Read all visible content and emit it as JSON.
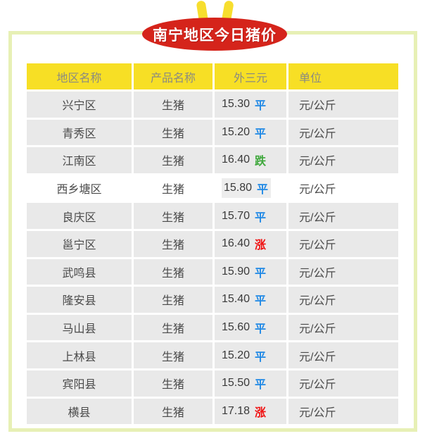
{
  "title": "南宁地区今日猪价",
  "colors": {
    "frame_border": "#E7F0B5",
    "badge_bg": "#D5241B",
    "badge_text": "#FFFFFF",
    "ear": "#F7DE2E",
    "header_bg": "#F7DF25",
    "header_text": "#8B8B80",
    "row_bg": "#E9E9E9",
    "row_selected_bg": "#FFFFFF",
    "body_text": "#4A4A4A",
    "trend_flat": "#1E88E5",
    "trend_down": "#3FA83C",
    "trend_up": "#F01010"
  },
  "chart_data": {
    "type": "table",
    "title": "南宁地区今日猪价",
    "columns": [
      "地区名称",
      "产品名称",
      "外三元",
      "单位"
    ],
    "rows": [
      {
        "region": "兴宁区",
        "product": "生猪",
        "price": "15.30",
        "trend": "平",
        "unit": "元/公斤"
      },
      {
        "region": "青秀区",
        "product": "生猪",
        "price": "15.20",
        "trend": "平",
        "unit": "元/公斤"
      },
      {
        "region": "江南区",
        "product": "生猪",
        "price": "16.40",
        "trend": "跌",
        "unit": "元/公斤"
      },
      {
        "region": "西乡塘区",
        "product": "生猪",
        "price": "15.80",
        "trend": "平",
        "unit": "元/公斤",
        "selected": true
      },
      {
        "region": "良庆区",
        "product": "生猪",
        "price": "15.70",
        "trend": "平",
        "unit": "元/公斤"
      },
      {
        "region": "邕宁区",
        "product": "生猪",
        "price": "16.40",
        "trend": "涨",
        "unit": "元/公斤"
      },
      {
        "region": "武鸣县",
        "product": "生猪",
        "price": "15.90",
        "trend": "平",
        "unit": "元/公斤"
      },
      {
        "region": "隆安县",
        "product": "生猪",
        "price": "15.40",
        "trend": "平",
        "unit": "元/公斤"
      },
      {
        "region": "马山县",
        "product": "生猪",
        "price": "15.60",
        "trend": "平",
        "unit": "元/公斤"
      },
      {
        "region": "上林县",
        "product": "生猪",
        "price": "15.20",
        "trend": "平",
        "unit": "元/公斤"
      },
      {
        "region": "宾阳县",
        "product": "生猪",
        "price": "15.50",
        "trend": "平",
        "unit": "元/公斤"
      },
      {
        "region": "横县",
        "product": "生猪",
        "price": "17.18",
        "trend": "涨",
        "unit": "元/公斤"
      }
    ]
  }
}
